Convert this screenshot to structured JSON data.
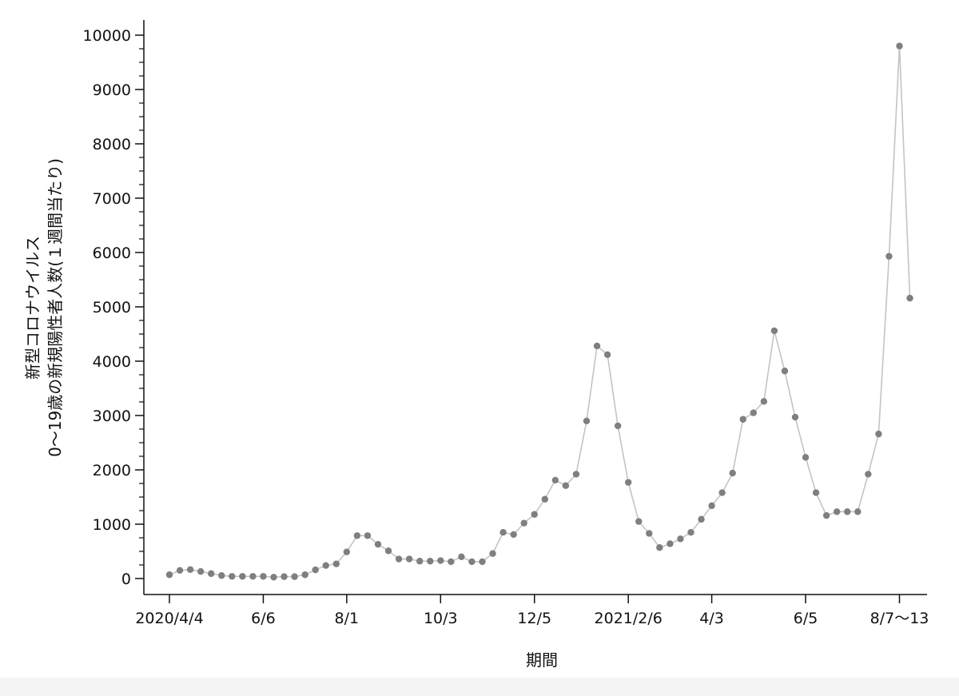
{
  "chart_data": {
    "type": "line",
    "xlabel": "期間",
    "ylabel_lines": [
      "新型コロナウイルス",
      "0〜19歳の新規陽性者人数(１週間当たり)"
    ],
    "ylim": [
      0,
      10000
    ],
    "yticks": [
      {
        "value": 0,
        "label": "0"
      },
      {
        "value": 1000,
        "label": "1000"
      },
      {
        "value": 2000,
        "label": "2000"
      },
      {
        "value": 3000,
        "label": "3000"
      },
      {
        "value": 4000,
        "label": "4000"
      },
      {
        "value": 5000,
        "label": "5000"
      },
      {
        "value": 6000,
        "label": "6000"
      },
      {
        "value": 7000,
        "label": "7000"
      },
      {
        "value": 8000,
        "label": "8000"
      },
      {
        "value": 9000,
        "label": "9000"
      },
      {
        "value": 10000,
        "label": "10000"
      }
    ],
    "xticks": [
      {
        "index": 0,
        "label": "2020/4/4"
      },
      {
        "index": 9,
        "label": "6/6"
      },
      {
        "index": 17,
        "label": "8/1"
      },
      {
        "index": 26,
        "label": "10/3"
      },
      {
        "index": 35,
        "label": "12/5"
      },
      {
        "index": 44,
        "label": "2021/2/6"
      },
      {
        "index": 52,
        "label": "4/3"
      },
      {
        "index": 61,
        "label": "6/5"
      },
      {
        "index": 70,
        "label": "8/7〜13"
      }
    ],
    "minor_y_step": 250,
    "grid": false,
    "line_color": "#c4c4c4",
    "marker_color": "#7f7f7f",
    "series": [
      {
        "values": [
          70,
          150,
          165,
          130,
          90,
          55,
          40,
          40,
          40,
          40,
          25,
          35,
          35,
          70,
          160,
          240,
          270,
          490,
          790,
          790,
          630,
          510,
          360,
          360,
          320,
          320,
          330,
          310,
          400,
          310,
          310,
          460,
          850,
          810,
          1020,
          1180,
          1460,
          1810,
          1710,
          1920,
          2900,
          4280,
          4120,
          2810,
          1770,
          1050,
          830,
          570,
          640,
          730,
          850,
          1090,
          1340,
          1580,
          1940,
          2930,
          3050,
          3260,
          4560,
          3820,
          2970,
          2230,
          1580,
          1160,
          1230,
          1230,
          1230,
          1920,
          2660,
          5930,
          9800,
          5160
        ]
      }
    ]
  }
}
